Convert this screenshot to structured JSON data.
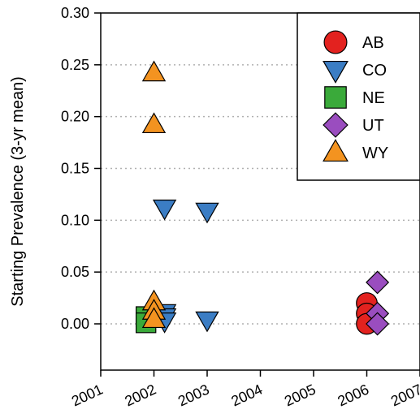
{
  "chart_data": {
    "type": "scatter",
    "title": "",
    "xlabel": "",
    "ylabel": "Starting Prevalence (3-yr mean)",
    "xlim": [
      2001,
      2007
    ],
    "ylim": [
      -0.045,
      0.3
    ],
    "x_ticks": [
      "2001",
      "2002",
      "2003",
      "2004",
      "2005",
      "2006",
      "2007"
    ],
    "y_ticks": [
      "0.00",
      "0.05",
      "0.10",
      "0.15",
      "0.20",
      "0.25",
      "0.30"
    ],
    "grid": "horizontal dotted",
    "legend_position": "top-right",
    "series": [
      {
        "name": "AB",
        "marker": "circle",
        "color": "#e3221f",
        "points": [
          {
            "x": 2006.0,
            "y": 0.02
          },
          {
            "x": 2006.0,
            "y": 0.01
          },
          {
            "x": 2006.0,
            "y": 0.0
          }
        ]
      },
      {
        "name": "CO",
        "marker": "triangle-down",
        "color": "#3b7dc4",
        "points": [
          {
            "x": 2002.2,
            "y": 0.112
          },
          {
            "x": 2003.0,
            "y": 0.109
          },
          {
            "x": 2003.0,
            "y": 0.004
          },
          {
            "x": 2002.2,
            "y": 0.011
          },
          {
            "x": 2002.2,
            "y": 0.007
          },
          {
            "x": 2002.2,
            "y": 0.003
          }
        ]
      },
      {
        "name": "NE",
        "marker": "square",
        "color": "#3aaa3a",
        "points": [
          {
            "x": 2001.85,
            "y": 0.007
          },
          {
            "x": 2001.85,
            "y": 0.001
          }
        ]
      },
      {
        "name": "UT",
        "marker": "diamond",
        "color": "#9a4dbf",
        "points": [
          {
            "x": 2006.2,
            "y": 0.04
          },
          {
            "x": 2006.2,
            "y": 0.01
          },
          {
            "x": 2006.2,
            "y": 0.0
          }
        ]
      },
      {
        "name": "WY",
        "marker": "triangle-up",
        "color": "#f39320",
        "points": [
          {
            "x": 2002.0,
            "y": 0.242
          },
          {
            "x": 2002.0,
            "y": 0.192
          },
          {
            "x": 2002.0,
            "y": 0.021
          },
          {
            "x": 2002.0,
            "y": 0.012
          },
          {
            "x": 2002.0,
            "y": 0.004
          }
        ]
      }
    ]
  }
}
